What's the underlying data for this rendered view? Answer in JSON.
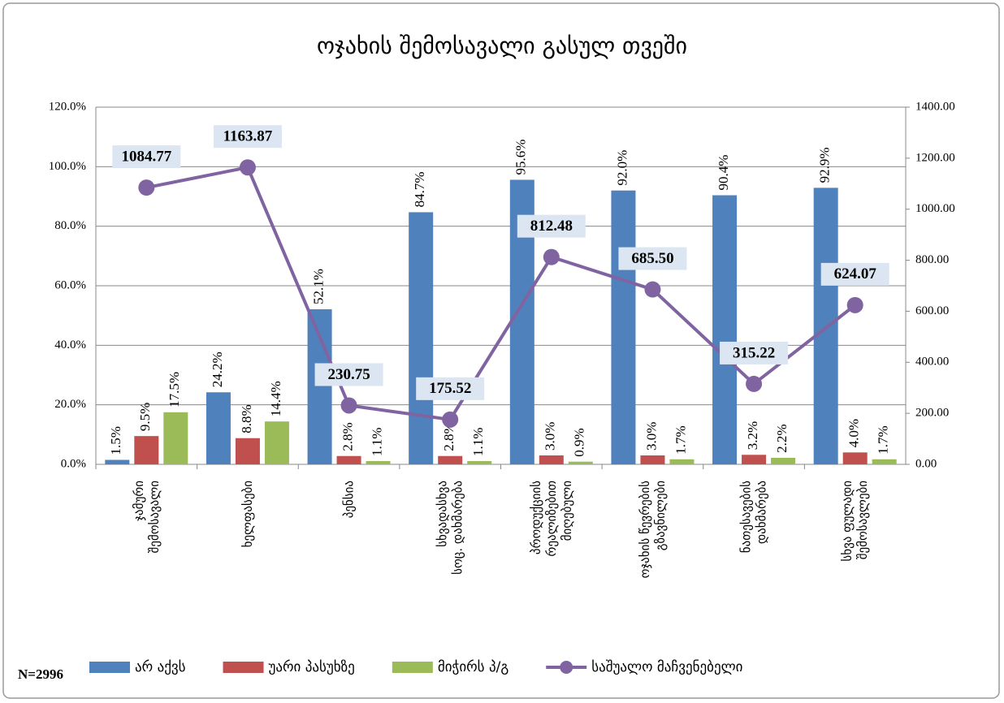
{
  "chart_data": {
    "type": "bar",
    "title": "ოჯახის  შემოსავალი გასულ თვეში",
    "annotation": "N=2996",
    "categories": [
      "ჯამური\nშემოსავალი",
      "ხელფასები",
      "პენსია",
      "სხვადასხვა\nსოც. დახმარება",
      "პროდუქციის\nრეალიზებით\nმიღებული",
      "ოჯახის წევრების\nგზავნილები",
      "ნათესავების\nდახმარება",
      "სხვა ფულადი\nშემოსავლები"
    ],
    "series": [
      {
        "name": "არ აქვს",
        "color": "#4f81bd",
        "values": [
          1.5,
          24.2,
          52.1,
          84.7,
          95.6,
          92.0,
          90.4,
          92.9
        ],
        "value_labels": [
          "1.5%",
          "24.2%",
          "52.1%",
          "84.7%",
          "95.6%",
          "92.0%",
          "90.4%",
          "92.9%"
        ]
      },
      {
        "name": "უარი პასუხზე",
        "color": "#c0504d",
        "values": [
          9.5,
          8.8,
          2.8,
          2.8,
          3.0,
          3.0,
          3.2,
          4.0
        ],
        "value_labels": [
          "9.5%",
          "8.8%",
          "2.8%",
          "2.8%",
          "3.0%",
          "3.0%",
          "3.2%",
          "4.0%"
        ]
      },
      {
        "name": "მიჭირს პ/გ",
        "color": "#9bbb59",
        "values": [
          17.5,
          14.4,
          1.1,
          1.1,
          0.9,
          1.7,
          2.2,
          1.7
        ],
        "value_labels": [
          "17.5%",
          "14.4%",
          "1.1%",
          "1.1%",
          "0.9%",
          "1.7%",
          "2.2%",
          "1.7%"
        ]
      },
      {
        "name": "საშუალო მაჩვენებელი",
        "color": "#8064a2",
        "type": "line",
        "axis": "y2",
        "values": [
          1084.77,
          1163.87,
          230.75,
          175.52,
          812.48,
          685.5,
          315.22,
          624.07
        ],
        "value_labels": [
          "1084.77",
          "1163.87",
          "230.75",
          "175.52",
          "812.48",
          "685.50",
          "315.22",
          "624.07"
        ]
      }
    ],
    "ylim": [
      0,
      120
    ],
    "yticks": [
      {
        "value": 0,
        "label": "0.0%"
      },
      {
        "value": 20,
        "label": "20.0%"
      },
      {
        "value": 40,
        "label": "40.0%"
      },
      {
        "value": 60,
        "label": "60.0%"
      },
      {
        "value": 80,
        "label": "80.0%"
      },
      {
        "value": 100,
        "label": "100.0%"
      },
      {
        "value": 120,
        "label": "120.0%"
      }
    ],
    "y2lim": [
      0,
      1400
    ],
    "y2ticks": [
      {
        "value": 0,
        "label": "0.00"
      },
      {
        "value": 200,
        "label": "200.00"
      },
      {
        "value": 400,
        "label": "400.00"
      },
      {
        "value": 600,
        "label": "600.00"
      },
      {
        "value": 800,
        "label": "800.00"
      },
      {
        "value": 1000,
        "label": "1000.00"
      },
      {
        "value": 1200,
        "label": "1200.00"
      },
      {
        "value": 1400,
        "label": "1400.00"
      }
    ],
    "grid": true,
    "legend": "bottom"
  }
}
